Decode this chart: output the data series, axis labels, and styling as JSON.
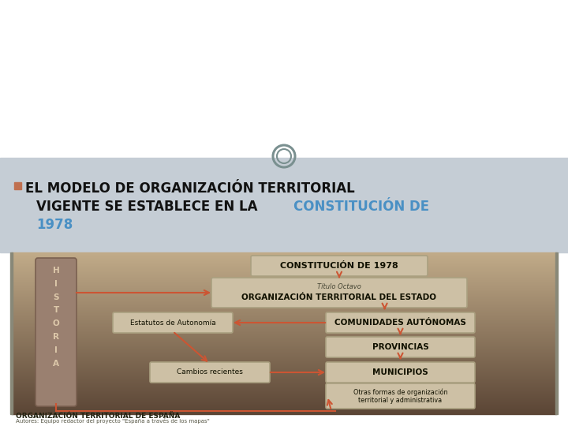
{
  "white_bg": "#ffffff",
  "gray_header": "#c5cdd5",
  "diagram_top": "#5a4535",
  "diagram_bot": "#c0aa88",
  "bullet_color": "#c07050",
  "arrow_color": "#cc5533",
  "historia_bg": "#9a8070",
  "historia_text_color": "#ddc8aa",
  "box_fill": "#cdc0a5",
  "box_edge": "#aaa080",
  "text_dark": "#111100",
  "blue_text": "#4a90c4",
  "title_line1": "EL MODELO DE ORGANIZACIÓN TERRITORIAL",
  "title_line2_black": "VIGENTE SE ESTABLECE EN LA ",
  "title_line2_blue": "CONSTITUCIÓN DE",
  "title_line3_blue": "1978",
  "historia_letters": "H\nI\nS\nT\nO\nR\nI\nA",
  "box_constitucion": "CONSTITUCIÓN DE 1978",
  "box_titulo_small": "Título Octavo",
  "box_titulo_big": "ORGANIZACIÓN TERRITORIAL DEL ESTADO",
  "box_estatutos": "Estatutos de Autonomía",
  "box_comunidades": "COMUNIDADES AUTÓNOMAS",
  "box_provincias": "PROVINCIAS",
  "box_cambios": "Cambios recientes",
  "box_municipios": "MUNICIPIOS",
  "box_otras": "Otras formas de organización\nterritorial y administrativa",
  "footer_title": "ORGANIZACIÓN TERRITORIAL DE ESPAÑA",
  "footer_sub": "Autores: Equipo redactor del proyecto \"España a través de los mapas\""
}
